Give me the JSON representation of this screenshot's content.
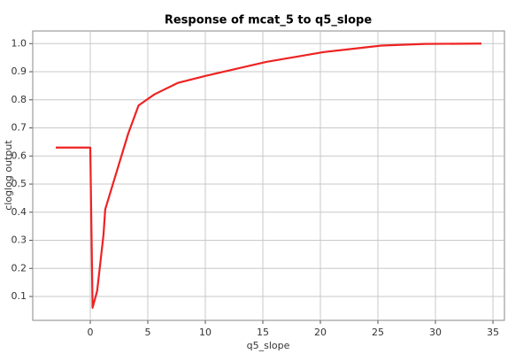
{
  "chart_data": {
    "type": "line",
    "title": "Response of mcat_5 to q5_slope",
    "x_label": "q5_slope",
    "y_label": "cloglog output",
    "xlim": [
      -5,
      36
    ],
    "ylim": [
      0.015,
      1.045
    ],
    "xticks": [
      0,
      5,
      10,
      15,
      20,
      25,
      30,
      35
    ],
    "yticks": [
      0.1,
      0.2,
      0.3,
      0.4,
      0.5,
      0.6,
      0.7,
      0.8,
      0.9,
      {
        "value": 1,
        "label": "1.0"
      }
    ],
    "grid": true,
    "series": [
      {
        "color": "#ee2222",
        "x": [
          -3,
          0,
          0.2,
          0.6,
          1.15,
          1.3,
          3.3,
          4.2,
          4.9,
          5.6,
          7.6,
          10,
          15.3,
          20.3,
          25.3,
          29.1,
          34
        ],
        "values": [
          0.63,
          0.63,
          0.06,
          0.12,
          0.32,
          0.41,
          0.68,
          0.78,
          0.8,
          0.82,
          0.86,
          0.885,
          0.935,
          0.97,
          0.993,
          0.999,
          1.0
        ]
      }
    ]
  }
}
